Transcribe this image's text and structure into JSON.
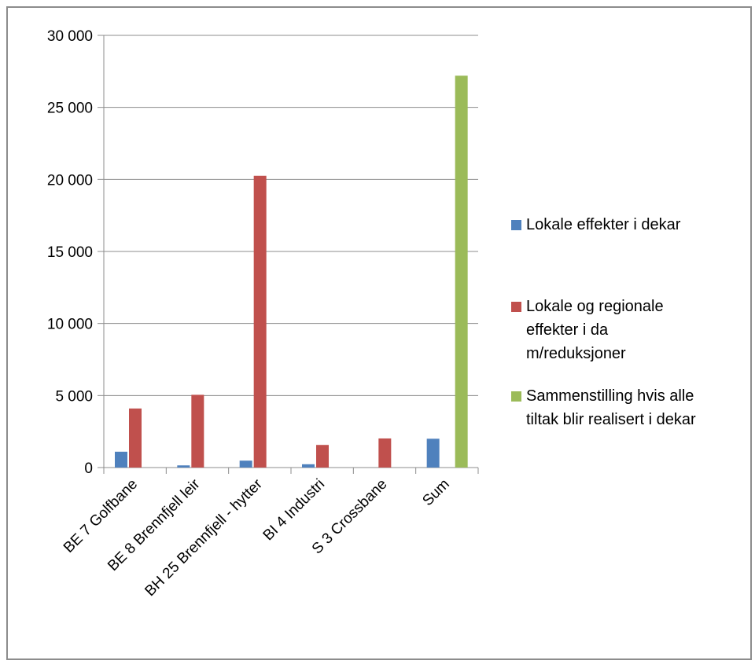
{
  "chart_data": {
    "type": "bar",
    "categories": [
      "BE 7 Golfbane",
      "BE 8 Brennfjell leir",
      "BH 25 Brennfjell - hytter",
      "BI 4 Industri",
      "S 3 Crossbane",
      "Sum"
    ],
    "series": [
      {
        "name": "Lokale effekter i dekar",
        "values": [
          1100,
          150,
          480,
          230,
          0,
          2000
        ]
      },
      {
        "name": "Lokale og regionale effekter i da m/reduksjoner",
        "values": [
          4100,
          5050,
          20250,
          1570,
          2020,
          0
        ]
      },
      {
        "name": "Sammenstilling hvis alle tiltak blir realisert i dekar",
        "values": [
          0,
          0,
          0,
          0,
          0,
          27200
        ]
      }
    ],
    "colors": [
      "#4f81bd",
      "#c0504d",
      "#9bbb59"
    ],
    "title": "",
    "xlabel": "",
    "ylabel": "",
    "ylim": [
      0,
      30000
    ],
    "yticks": [
      0,
      5000,
      10000,
      15000,
      20000,
      25000,
      30000
    ],
    "ytick_labels": [
      "0",
      "5 000",
      "10 000",
      "15 000",
      "20 000",
      "25 000",
      "30 000"
    ],
    "grid": true,
    "legend": "right"
  }
}
